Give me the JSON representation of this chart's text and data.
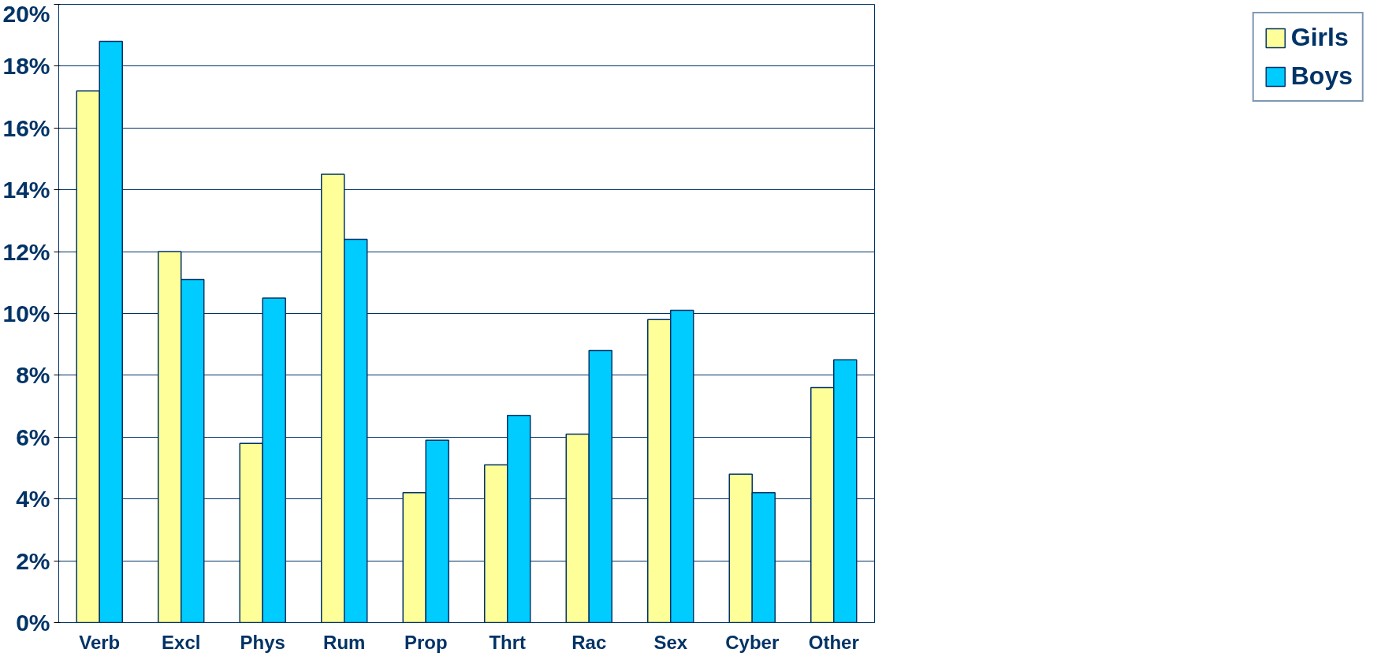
{
  "chart_data": {
    "type": "bar",
    "categories": [
      "Verb",
      "Excl",
      "Phys",
      "Rum",
      "Prop",
      "Thrt",
      "Rac",
      "Sex",
      "Cyber",
      "Other"
    ],
    "series": [
      {
        "name": "Girls",
        "color": "#ffff99",
        "values": [
          17.2,
          12.0,
          5.8,
          14.5,
          4.2,
          5.1,
          6.1,
          9.8,
          4.8,
          7.6
        ]
      },
      {
        "name": "Boys",
        "color": "#00ccff",
        "values": [
          18.8,
          11.1,
          10.5,
          12.4,
          5.9,
          6.7,
          8.8,
          10.1,
          4.2,
          8.5
        ]
      }
    ],
    "ylim": [
      0,
      20
    ],
    "yticks": [
      {
        "value": 0,
        "label": "0%"
      },
      {
        "value": 2,
        "label": "2%"
      },
      {
        "value": 4,
        "label": "4%"
      },
      {
        "value": 6,
        "label": "6%"
      },
      {
        "value": 8,
        "label": "8%"
      },
      {
        "value": 10,
        "label": "10%"
      },
      {
        "value": 12,
        "label": "12%"
      },
      {
        "value": 14,
        "label": "14%"
      },
      {
        "value": 16,
        "label": "16%"
      },
      {
        "value": 18,
        "label": "18%"
      },
      {
        "value": 20,
        "label": "20%"
      }
    ],
    "grid": "y",
    "legend": "right"
  }
}
